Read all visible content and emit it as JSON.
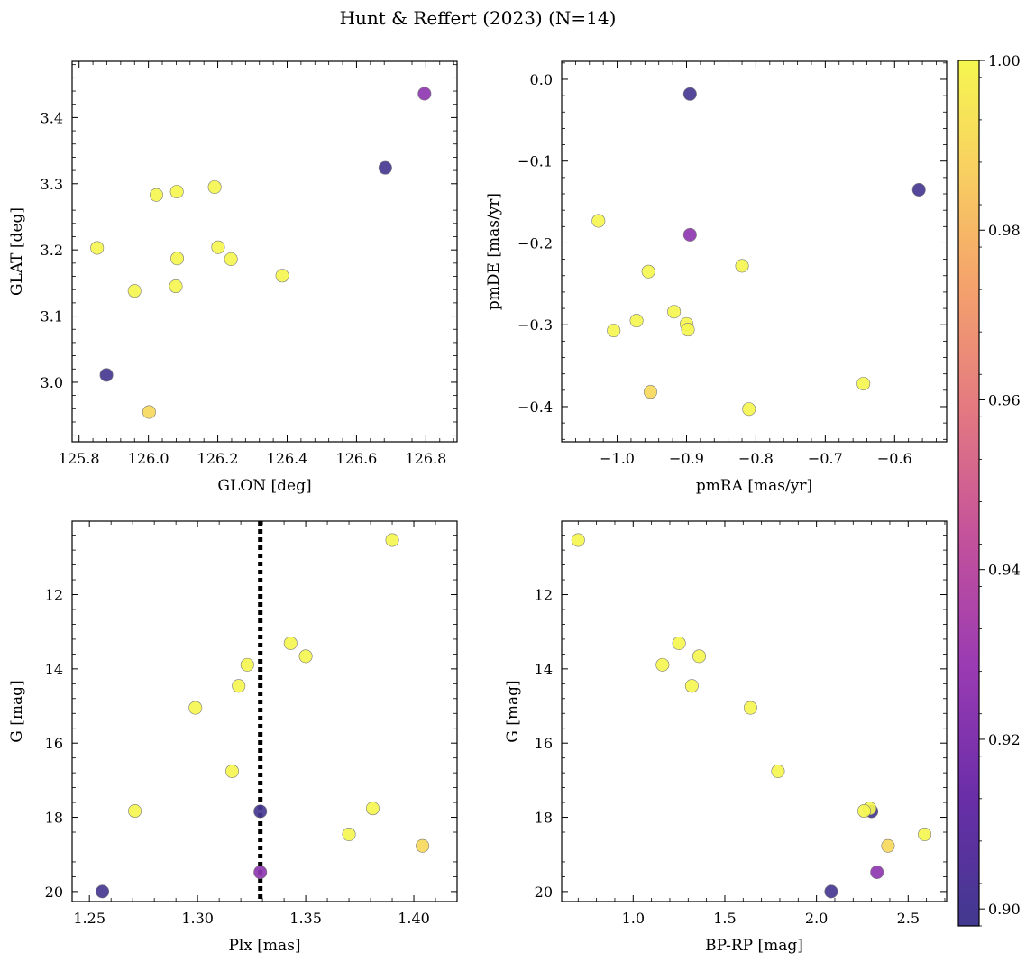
{
  "figure": {
    "title": "Hunt & Reffert (2023) (N=14)"
  },
  "colorbar": {
    "colormap": "plasma",
    "min": 0.898,
    "max": 1.0,
    "ticks": [
      0.9,
      0.92,
      0.94,
      0.96,
      0.98,
      1.0
    ],
    "tick_labels": [
      "0.90",
      "0.92",
      "0.94",
      "0.96",
      "0.98",
      "1.00"
    ]
  },
  "chart_data": [
    {
      "type": "scatter",
      "xlabel": "GLON [deg]",
      "ylabel": "GLAT [deg]",
      "xlim": [
        125.78,
        126.89
      ],
      "ylim": [
        2.91,
        3.485
      ],
      "y_inverted": false,
      "xticks": [
        125.8,
        126.0,
        126.2,
        126.4,
        126.6,
        126.8
      ],
      "xtick_labels": [
        "125.8",
        "126.0",
        "126.2",
        "126.4",
        "126.6",
        "126.8"
      ],
      "yticks": [
        3.0,
        3.1,
        3.2,
        3.3,
        3.4
      ],
      "ytick_labels": [
        "3.0",
        "3.1",
        "3.2",
        "3.3",
        "3.4"
      ],
      "points": [
        {
          "x": 126.796,
          "y": 3.436,
          "c": 0.925
        },
        {
          "x": 126.683,
          "y": 3.324,
          "c": 0.9
        },
        {
          "x": 126.191,
          "y": 3.295,
          "c": 1.0
        },
        {
          "x": 126.082,
          "y": 3.288,
          "c": 1.0
        },
        {
          "x": 126.023,
          "y": 3.283,
          "c": 1.0
        },
        {
          "x": 125.852,
          "y": 3.203,
          "c": 1.0
        },
        {
          "x": 126.201,
          "y": 3.204,
          "c": 1.0
        },
        {
          "x": 126.083,
          "y": 3.187,
          "c": 1.0
        },
        {
          "x": 126.238,
          "y": 3.186,
          "c": 1.0
        },
        {
          "x": 126.386,
          "y": 3.161,
          "c": 1.0
        },
        {
          "x": 126.079,
          "y": 3.145,
          "c": 1.0
        },
        {
          "x": 125.96,
          "y": 3.138,
          "c": 1.0
        },
        {
          "x": 125.879,
          "y": 3.011,
          "c": 0.9
        },
        {
          "x": 126.002,
          "y": 2.955,
          "c": 0.99
        }
      ]
    },
    {
      "type": "scatter",
      "xlabel": "pmRA [mas/yr]",
      "ylabel": "pmDE [mas/yr]",
      "xlim": [
        -1.08,
        -0.525
      ],
      "ylim": [
        -0.443,
        0.022
      ],
      "y_inverted": false,
      "xticks": [
        -1.0,
        -0.9,
        -0.8,
        -0.7,
        -0.6
      ],
      "xtick_labels": [
        "−1.0",
        "−0.9",
        "−0.8",
        "−0.7",
        "−0.6"
      ],
      "yticks": [
        -0.4,
        -0.3,
        -0.2,
        -0.1,
        0.0
      ],
      "ytick_labels": [
        "−0.4",
        "−0.3",
        "−0.2",
        "−0.1",
        "0.0"
      ],
      "points": [
        {
          "x": -0.895,
          "y": -0.018,
          "c": 0.9
        },
        {
          "x": -0.565,
          "y": -0.135,
          "c": 0.9
        },
        {
          "x": -1.027,
          "y": -0.173,
          "c": 1.0
        },
        {
          "x": -0.895,
          "y": -0.19,
          "c": 0.925
        },
        {
          "x": -0.82,
          "y": -0.228,
          "c": 1.0
        },
        {
          "x": -0.955,
          "y": -0.235,
          "c": 1.0
        },
        {
          "x": -0.918,
          "y": -0.284,
          "c": 1.0
        },
        {
          "x": -0.972,
          "y": -0.295,
          "c": 1.0
        },
        {
          "x": -0.9,
          "y": -0.299,
          "c": 1.0
        },
        {
          "x": -1.005,
          "y": -0.307,
          "c": 1.0
        },
        {
          "x": -0.898,
          "y": -0.306,
          "c": 1.0
        },
        {
          "x": -0.645,
          "y": -0.372,
          "c": 1.0
        },
        {
          "x": -0.952,
          "y": -0.382,
          "c": 0.99
        },
        {
          "x": -0.81,
          "y": -0.403,
          "c": 1.0
        }
      ]
    },
    {
      "type": "scatter",
      "xlabel": "Plx [mas]",
      "ylabel": "G [mag]",
      "xlim": [
        1.242,
        1.42
      ],
      "ylim": [
        20.27,
        10.02
      ],
      "y_inverted": true,
      "xticks": [
        1.25,
        1.3,
        1.35,
        1.4
      ],
      "xtick_labels": [
        "1.25",
        "1.30",
        "1.35",
        "1.40"
      ],
      "yticks": [
        12,
        14,
        16,
        18,
        20
      ],
      "ytick_labels": [
        "12",
        "14",
        "16",
        "18",
        "20"
      ],
      "vline": {
        "x": 1.329,
        "style": "dotted",
        "color": "#000000"
      },
      "points": [
        {
          "x": 1.39,
          "y": 10.53,
          "c": 1.0
        },
        {
          "x": 1.343,
          "y": 13.31,
          "c": 1.0
        },
        {
          "x": 1.35,
          "y": 13.66,
          "c": 1.0
        },
        {
          "x": 1.323,
          "y": 13.89,
          "c": 1.0
        },
        {
          "x": 1.319,
          "y": 14.46,
          "c": 1.0
        },
        {
          "x": 1.299,
          "y": 15.05,
          "c": 1.0
        },
        {
          "x": 1.316,
          "y": 16.76,
          "c": 1.0
        },
        {
          "x": 1.381,
          "y": 17.76,
          "c": 1.0
        },
        {
          "x": 1.271,
          "y": 17.83,
          "c": 1.0
        },
        {
          "x": 1.329,
          "y": 17.84,
          "c": 0.9
        },
        {
          "x": 1.37,
          "y": 18.46,
          "c": 1.0
        },
        {
          "x": 1.404,
          "y": 18.77,
          "c": 0.99
        },
        {
          "x": 1.329,
          "y": 19.48,
          "c": 0.925
        },
        {
          "x": 1.256,
          "y": 20.0,
          "c": 0.9
        }
      ]
    },
    {
      "type": "scatter",
      "xlabel": "BP-RP [mag]",
      "ylabel": "G [mag]",
      "xlim": [
        0.61,
        2.71
      ],
      "ylim": [
        20.27,
        10.02
      ],
      "y_inverted": true,
      "xticks": [
        1.0,
        1.5,
        2.0,
        2.5
      ],
      "xtick_labels": [
        "1.0",
        "1.5",
        "2.0",
        "2.5"
      ],
      "yticks": [
        12,
        14,
        16,
        18,
        20
      ],
      "ytick_labels": [
        "12",
        "14",
        "16",
        "18",
        "20"
      ],
      "points": [
        {
          "x": 0.7,
          "y": 10.53,
          "c": 1.0
        },
        {
          "x": 1.25,
          "y": 13.31,
          "c": 1.0
        },
        {
          "x": 1.36,
          "y": 13.66,
          "c": 1.0
        },
        {
          "x": 1.16,
          "y": 13.89,
          "c": 1.0
        },
        {
          "x": 1.32,
          "y": 14.46,
          "c": 1.0
        },
        {
          "x": 1.64,
          "y": 15.05,
          "c": 1.0
        },
        {
          "x": 1.79,
          "y": 16.76,
          "c": 1.0
        },
        {
          "x": 2.3,
          "y": 17.84,
          "c": 0.9
        },
        {
          "x": 2.29,
          "y": 17.76,
          "c": 1.0
        },
        {
          "x": 2.26,
          "y": 17.83,
          "c": 1.0
        },
        {
          "x": 2.59,
          "y": 18.46,
          "c": 1.0
        },
        {
          "x": 2.39,
          "y": 18.77,
          "c": 0.99
        },
        {
          "x": 2.33,
          "y": 19.48,
          "c": 0.925
        },
        {
          "x": 2.08,
          "y": 20.0,
          "c": 0.9
        }
      ]
    }
  ]
}
